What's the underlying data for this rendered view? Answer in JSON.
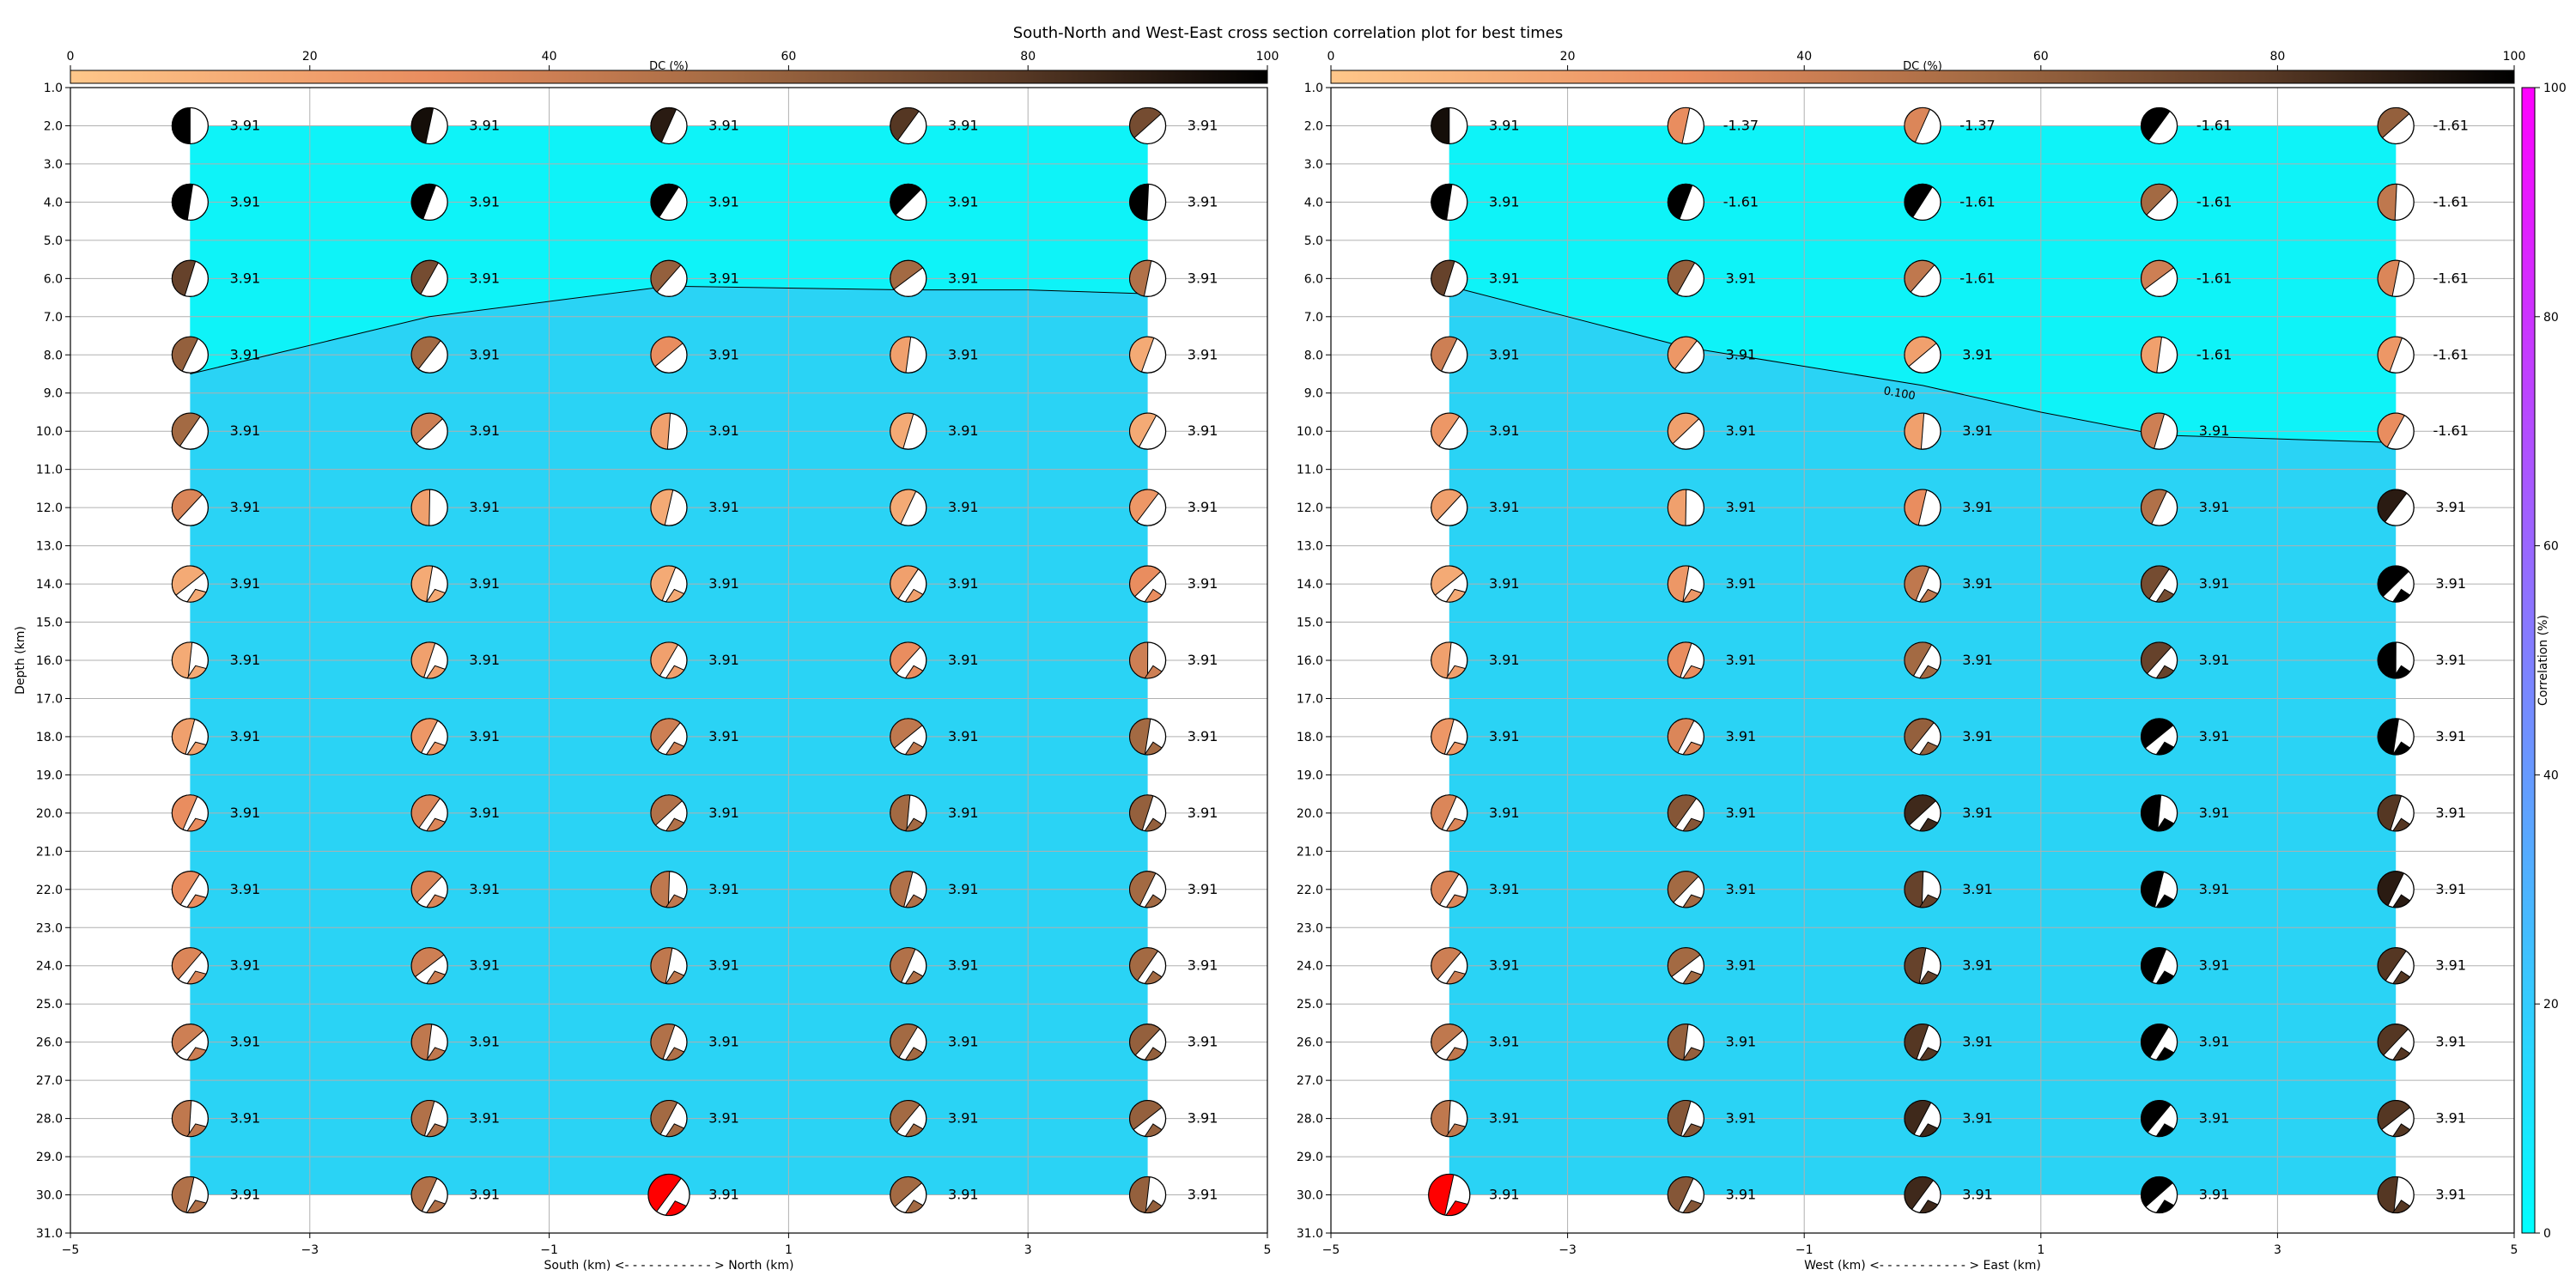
{
  "figure": {
    "title": "South-North and West-East cross section correlation plot for best times"
  },
  "colors": {
    "background": "#ffffff",
    "grid": "#b0b0b0",
    "low_correlation_fill": "#2ad3f5",
    "high_correlation_fill": "#0ef3f8",
    "contour_line": "#000000",
    "best_solution": "#ff0000",
    "dc_colormap": [
      "#ffc78a",
      "#e98d5f",
      "#a36a43",
      "#5d3c27",
      "#000000"
    ],
    "correlation_colormap": [
      "#00ffff",
      "#8080ff",
      "#ff00ff"
    ]
  },
  "dc_colorbar": {
    "label": "DC (%)",
    "ticks": [
      "0",
      "20",
      "40",
      "60",
      "80",
      "100"
    ]
  },
  "correlation_colorbar": {
    "label": "Correlation (%)",
    "ticks": [
      "0",
      "20",
      "40",
      "60",
      "80",
      "100"
    ]
  },
  "chart_data": [
    {
      "type": "heatmap",
      "xlabel": "South (km) <- - - - - - - - - - - > North (km)",
      "ylabel": "Depth (km)",
      "xlim": [
        -5,
        5
      ],
      "ylim": [
        31,
        1
      ],
      "x_ticks": [
        "−5",
        "−3",
        "−1",
        "1",
        "3",
        "5"
      ],
      "y_ticks": [
        "1.0",
        "2.0",
        "3.0",
        "4.0",
        "5.0",
        "6.0",
        "7.0",
        "8.0",
        "9.0",
        "10.0",
        "11.0",
        "12.0",
        "13.0",
        "14.0",
        "15.0",
        "16.0",
        "17.0",
        "18.0",
        "19.0",
        "20.0",
        "21.0",
        "22.0",
        "23.0",
        "24.0",
        "25.0",
        "26.0",
        "27.0",
        "28.0",
        "29.0",
        "30.0",
        "31.0"
      ],
      "x": [
        -4,
        -2,
        0,
        2,
        4
      ],
      "depths": [
        2,
        4,
        6,
        8,
        10,
        12,
        14,
        16,
        18,
        20,
        22,
        24,
        26,
        28,
        30
      ],
      "correlation_regions": [
        {
          "depth_min": 2,
          "depth_max": 6.2,
          "correlation": 10.5
        },
        {
          "depth_min": 6.2,
          "depth_max": 30,
          "correlation": 9.5
        }
      ],
      "contour": {
        "level_label": "",
        "x": [
          -4,
          -2,
          -1,
          0,
          1,
          2,
          3,
          4
        ],
        "depth": [
          8.5,
          7.0,
          6.6,
          6.2,
          6.25,
          6.3,
          6.3,
          6.4
        ]
      },
      "mw_labels": [
        [
          "3.91",
          "3.91",
          "3.91",
          "3.91",
          "3.91"
        ],
        [
          "3.91",
          "3.91",
          "3.91",
          "3.91",
          "3.91"
        ],
        [
          "3.91",
          "3.91",
          "3.91",
          "3.91",
          "3.91"
        ],
        [
          "3.91",
          "3.91",
          "3.91",
          "3.91",
          "3.91"
        ],
        [
          "3.91",
          "3.91",
          "3.91",
          "3.91",
          "3.91"
        ],
        [
          "3.91",
          "3.91",
          "3.91",
          "3.91",
          "3.91"
        ],
        [
          "3.91",
          "3.91",
          "3.91",
          "3.91",
          "3.91"
        ],
        [
          "3.91",
          "3.91",
          "3.91",
          "3.91",
          "3.91"
        ],
        [
          "3.91",
          "3.91",
          "3.91",
          "3.91",
          "3.91"
        ],
        [
          "3.91",
          "3.91",
          "3.91",
          "3.91",
          "3.91"
        ],
        [
          "3.91",
          "3.91",
          "3.91",
          "3.91",
          "3.91"
        ],
        [
          "3.91",
          "3.91",
          "3.91",
          "3.91",
          "3.91"
        ],
        [
          "3.91",
          "3.91",
          "3.91",
          "3.91",
          "3.91"
        ],
        [
          "3.91",
          "3.91",
          "3.91",
          "3.91",
          "3.91"
        ],
        [
          "3.91",
          "3.91",
          "3.91",
          "3.91",
          "3.91"
        ]
      ],
      "dc_percent": [
        [
          100,
          95,
          90,
          80,
          70
        ],
        [
          100,
          100,
          100,
          100,
          100
        ],
        [
          75,
          70,
          60,
          55,
          50
        ],
        [
          60,
          55,
          30,
          20,
          15
        ],
        [
          55,
          40,
          20,
          15,
          15
        ],
        [
          35,
          20,
          15,
          15,
          25
        ],
        [
          15,
          15,
          15,
          20,
          30
        ],
        [
          15,
          20,
          20,
          30,
          40
        ],
        [
          20,
          25,
          40,
          45,
          55
        ],
        [
          30,
          35,
          50,
          55,
          60
        ],
        [
          30,
          35,
          45,
          50,
          55
        ],
        [
          35,
          40,
          45,
          50,
          55
        ],
        [
          40,
          45,
          50,
          55,
          60
        ],
        [
          45,
          50,
          55,
          55,
          60
        ],
        [
          50,
          50,
          -1,
          55,
          60
        ]
      ],
      "best_solution": {
        "x": 0,
        "depth": 30
      }
    },
    {
      "type": "heatmap",
      "xlabel": "West (km) <- - - - - - - - - - - > East (km)",
      "ylabel": "",
      "xlim": [
        -5,
        5
      ],
      "ylim": [
        31,
        1
      ],
      "x_ticks": [
        "−5",
        "−3",
        "−1",
        "1",
        "3",
        "5"
      ],
      "y_ticks": [
        "1.0",
        "2.0",
        "3.0",
        "4.0",
        "5.0",
        "6.0",
        "7.0",
        "8.0",
        "9.0",
        "10.0",
        "11.0",
        "12.0",
        "13.0",
        "14.0",
        "15.0",
        "16.0",
        "17.0",
        "18.0",
        "19.0",
        "20.0",
        "21.0",
        "22.0",
        "23.0",
        "24.0",
        "25.0",
        "26.0",
        "27.0",
        "28.0",
        "29.0",
        "30.0",
        "31.0"
      ],
      "x": [
        -4,
        -2,
        0,
        2,
        4
      ],
      "depths": [
        2,
        4,
        6,
        8,
        10,
        12,
        14,
        16,
        18,
        20,
        22,
        24,
        26,
        28,
        30
      ],
      "correlation_regions": [
        {
          "depth_min": 2,
          "depth_max": 6.2,
          "correlation": 10.5
        },
        {
          "depth_min": 6.2,
          "depth_max": 30,
          "correlation": 9.5
        }
      ],
      "contour": {
        "level_label": "0.100",
        "x": [
          -4,
          -3,
          -2,
          -1,
          0,
          1,
          2,
          3,
          4
        ],
        "depth": [
          6.2,
          7.0,
          7.8,
          8.3,
          8.8,
          9.5,
          10.1,
          10.2,
          10.3
        ]
      },
      "mw_labels": [
        [
          "3.91",
          "-1.37",
          "-1.37",
          "-1.61",
          "-1.61"
        ],
        [
          "3.91",
          "-1.61",
          "-1.61",
          "-1.61",
          "-1.61"
        ],
        [
          "3.91",
          "3.91",
          "-1.61",
          "-1.61",
          "-1.61"
        ],
        [
          "3.91",
          "3.91",
          "3.91",
          "-1.61",
          "-1.61"
        ],
        [
          "3.91",
          "3.91",
          "3.91",
          "3.91",
          "-1.61"
        ],
        [
          "3.91",
          "3.91",
          "3.91",
          "3.91",
          "3.91"
        ],
        [
          "3.91",
          "3.91",
          "3.91",
          "3.91",
          "3.91"
        ],
        [
          "3.91",
          "3.91",
          "3.91",
          "3.91",
          "3.91"
        ],
        [
          "3.91",
          "3.91",
          "3.91",
          "3.91",
          "3.91"
        ],
        [
          "3.91",
          "3.91",
          "3.91",
          "3.91",
          "3.91"
        ],
        [
          "3.91",
          "3.91",
          "3.91",
          "3.91",
          "3.91"
        ],
        [
          "3.91",
          "3.91",
          "3.91",
          "3.91",
          "3.91"
        ],
        [
          "3.91",
          "3.91",
          "3.91",
          "3.91",
          "3.91"
        ],
        [
          "3.91",
          "3.91",
          "3.91",
          "3.91",
          "3.91"
        ],
        [
          "3.91",
          "3.91",
          "3.91",
          "3.91",
          "3.91"
        ]
      ],
      "dc_percent": [
        [
          95,
          30,
          35,
          100,
          60
        ],
        [
          100,
          100,
          100,
          55,
          45
        ],
        [
          75,
          60,
          45,
          40,
          35
        ],
        [
          40,
          25,
          20,
          20,
          25
        ],
        [
          25,
          20,
          20,
          40,
          30
        ],
        [
          20,
          20,
          30,
          50,
          90
        ],
        [
          15,
          25,
          45,
          70,
          100
        ],
        [
          20,
          30,
          55,
          75,
          100
        ],
        [
          25,
          35,
          60,
          100,
          100
        ],
        [
          35,
          65,
          85,
          100,
          80
        ],
        [
          35,
          55,
          75,
          100,
          90
        ],
        [
          40,
          55,
          75,
          100,
          80
        ],
        [
          45,
          60,
          80,
          100,
          80
        ],
        [
          45,
          65,
          85,
          100,
          80
        ],
        [
          -1,
          65,
          85,
          100,
          80
        ]
      ],
      "best_solution": {
        "x": -4,
        "depth": 30
      }
    }
  ]
}
